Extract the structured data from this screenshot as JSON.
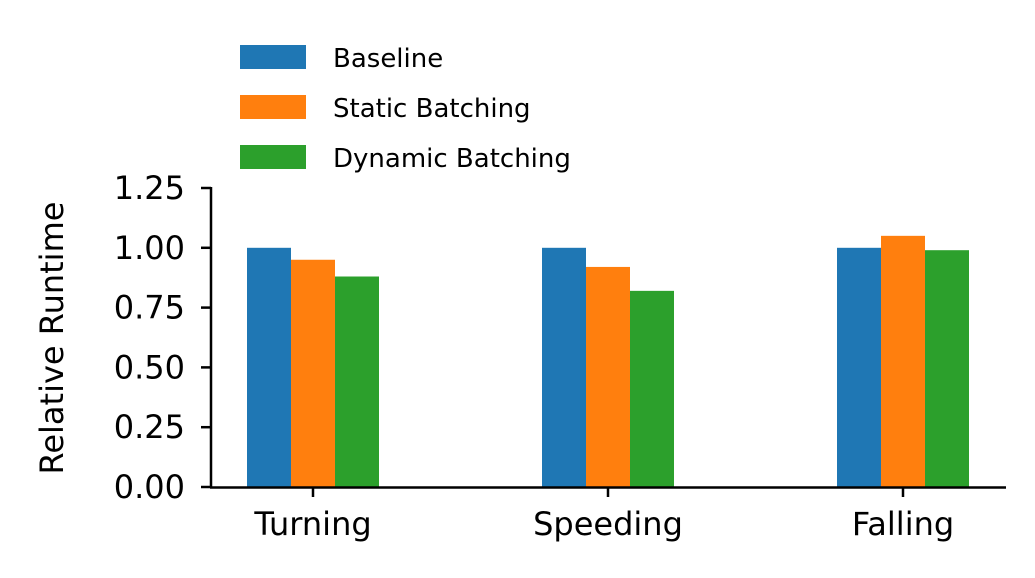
{
  "chart_data": {
    "type": "bar",
    "title": "",
    "xlabel": "",
    "ylabel": "Relative Runtime",
    "categories": [
      "Turning",
      "Speeding",
      "Falling"
    ],
    "series": [
      {
        "name": "Baseline",
        "color": "#1f77b4",
        "values": [
          1.0,
          1.0,
          1.0
        ]
      },
      {
        "name": "Static Batching",
        "color": "#ff7f0e",
        "values": [
          0.95,
          0.92,
          1.05
        ]
      },
      {
        "name": "Dynamic Batching",
        "color": "#2ca02c",
        "values": [
          0.88,
          0.82,
          0.99
        ]
      }
    ],
    "ylim": [
      0,
      1.25
    ],
    "yticks": [
      "0.00",
      "0.25",
      "0.50",
      "0.75",
      "1.00",
      "1.25"
    ],
    "grid": false,
    "legend_position": "top-left"
  }
}
